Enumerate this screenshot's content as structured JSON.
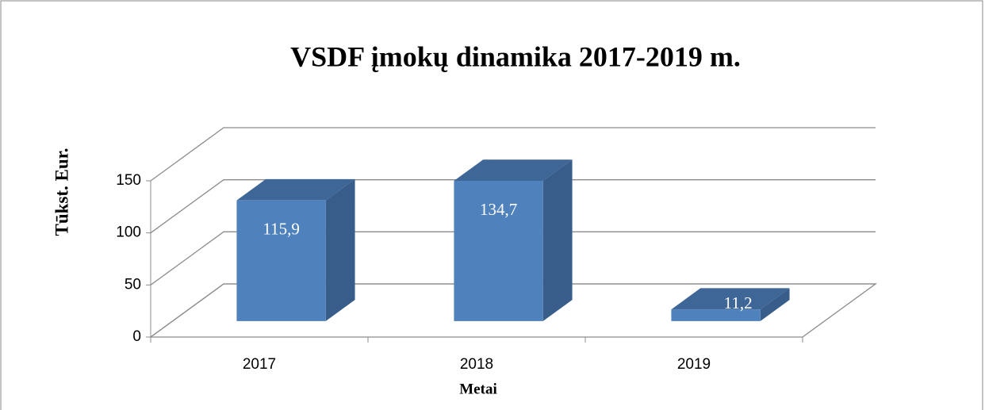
{
  "chart_data": {
    "type": "bar3d",
    "title": "VSDF įmokų dinamika 2017-2019 m.",
    "ylabel": "Tūkst. Eur.",
    "xlabel": "Metai",
    "categories": [
      "2017",
      "2018",
      "2019"
    ],
    "values": [
      115.9,
      134.7,
      11.2
    ],
    "value_labels": [
      "115,9",
      "134,7",
      "11,2"
    ],
    "color": "#4f81bd",
    "ylim": [
      0,
      150
    ],
    "yticks": [
      0,
      50,
      100,
      150
    ],
    "grid": true
  }
}
